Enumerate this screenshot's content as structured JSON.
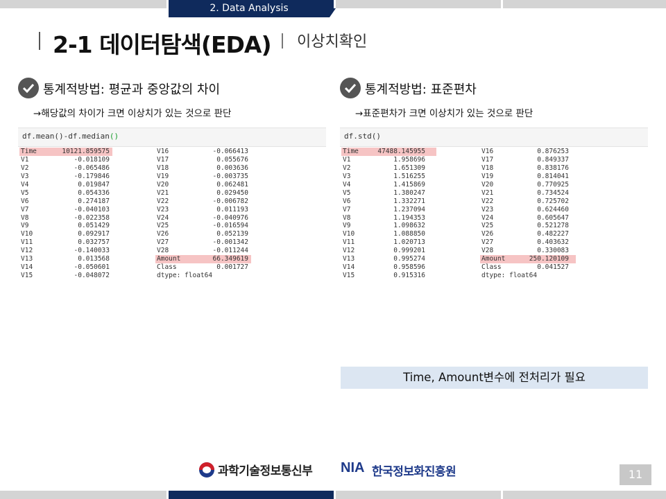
{
  "section_label": "2. Data Analysis",
  "title": "2-1 데이터탐색(EDA)",
  "subtitle": "이상치확인",
  "left_panel": {
    "heading": "통계적방법: 평균과 중앙값의 차이",
    "note": "→해당값의 차이가 크면 이상치가 있는 것으로 판단",
    "code": "df.mean()-df.median",
    "code_parens": "()",
    "col1": [
      {
        "name": "Time",
        "value": "10121.859575",
        "highlight": true
      },
      {
        "name": "V1",
        "value": "-0.018109"
      },
      {
        "name": "V2",
        "value": "-0.065486"
      },
      {
        "name": "V3",
        "value": "-0.179846"
      },
      {
        "name": "V4",
        "value": "0.019847"
      },
      {
        "name": "V5",
        "value": "0.054336"
      },
      {
        "name": "V6",
        "value": "0.274187"
      },
      {
        "name": "V7",
        "value": "-0.040103"
      },
      {
        "name": "V8",
        "value": "-0.022358"
      },
      {
        "name": "V9",
        "value": "0.051429"
      },
      {
        "name": "V10",
        "value": "0.092917"
      },
      {
        "name": "V11",
        "value": "0.032757"
      },
      {
        "name": "V12",
        "value": "-0.140033"
      },
      {
        "name": "V13",
        "value": "0.013568"
      },
      {
        "name": "V14",
        "value": "-0.050601"
      },
      {
        "name": "V15",
        "value": "-0.048072"
      }
    ],
    "col2": [
      {
        "name": "V16",
        "value": "-0.066413"
      },
      {
        "name": "V17",
        "value": "0.055676"
      },
      {
        "name": "V18",
        "value": "0.003636"
      },
      {
        "name": "V19",
        "value": "-0.003735"
      },
      {
        "name": "V20",
        "value": "0.062481"
      },
      {
        "name": "V21",
        "value": "0.029450"
      },
      {
        "name": "V22",
        "value": "-0.006782"
      },
      {
        "name": "V23",
        "value": "0.011193"
      },
      {
        "name": "V24",
        "value": "-0.040976"
      },
      {
        "name": "V25",
        "value": "-0.016594"
      },
      {
        "name": "V26",
        "value": "0.052139"
      },
      {
        "name": "V27",
        "value": "-0.001342"
      },
      {
        "name": "V28",
        "value": "-0.011244"
      },
      {
        "name": "Amount",
        "value": "66.349619",
        "highlight": true
      },
      {
        "name": "Class",
        "value": "0.001727"
      },
      {
        "name": "dtype: float64",
        "value": ""
      }
    ]
  },
  "right_panel": {
    "heading": "통계적방법: 표준편차",
    "note": "→표준편차가 크면 이상치가 있는 것으로 판단",
    "code": "df.std()",
    "code_parens": "",
    "col1": [
      {
        "name": "Time",
        "value": "47488.145955",
        "highlight": true
      },
      {
        "name": "V1",
        "value": "1.958696"
      },
      {
        "name": "V2",
        "value": "1.651309"
      },
      {
        "name": "V3",
        "value": "1.516255"
      },
      {
        "name": "V4",
        "value": "1.415869"
      },
      {
        "name": "V5",
        "value": "1.380247"
      },
      {
        "name": "V6",
        "value": "1.332271"
      },
      {
        "name": "V7",
        "value": "1.237094"
      },
      {
        "name": "V8",
        "value": "1.194353"
      },
      {
        "name": "V9",
        "value": "1.098632"
      },
      {
        "name": "V10",
        "value": "1.088850"
      },
      {
        "name": "V11",
        "value": "1.020713"
      },
      {
        "name": "V12",
        "value": "0.999201"
      },
      {
        "name": "V13",
        "value": "0.995274"
      },
      {
        "name": "V14",
        "value": "0.958596"
      },
      {
        "name": "V15",
        "value": "0.915316"
      }
    ],
    "col2": [
      {
        "name": "V16",
        "value": "0.876253"
      },
      {
        "name": "V17",
        "value": "0.849337"
      },
      {
        "name": "V18",
        "value": "0.838176"
      },
      {
        "name": "V19",
        "value": "0.814041"
      },
      {
        "name": "V20",
        "value": "0.770925"
      },
      {
        "name": "V21",
        "value": "0.734524"
      },
      {
        "name": "V22",
        "value": "0.725702"
      },
      {
        "name": "V23",
        "value": "0.624460"
      },
      {
        "name": "V24",
        "value": "0.605647"
      },
      {
        "name": "V25",
        "value": "0.521278"
      },
      {
        "name": "V26",
        "value": "0.482227"
      },
      {
        "name": "V27",
        "value": "0.403632"
      },
      {
        "name": "V28",
        "value": "0.330083"
      },
      {
        "name": "Amount",
        "value": "250.120109",
        "highlight": true
      },
      {
        "name": "Class",
        "value": "0.041527"
      },
      {
        "name": "dtype: float64",
        "value": ""
      }
    ]
  },
  "callout": "Time, Amount변수에 전처리가 필요",
  "footer": {
    "ministry": "과학기술정보통신부",
    "nia_mark": "NIA",
    "nia_name": "한국정보화진흥원"
  },
  "page_number": "11",
  "colors": {
    "navy": "#0f2a5c",
    "highlight": "#f6c4c4",
    "callout_bg": "#dce6f2"
  }
}
